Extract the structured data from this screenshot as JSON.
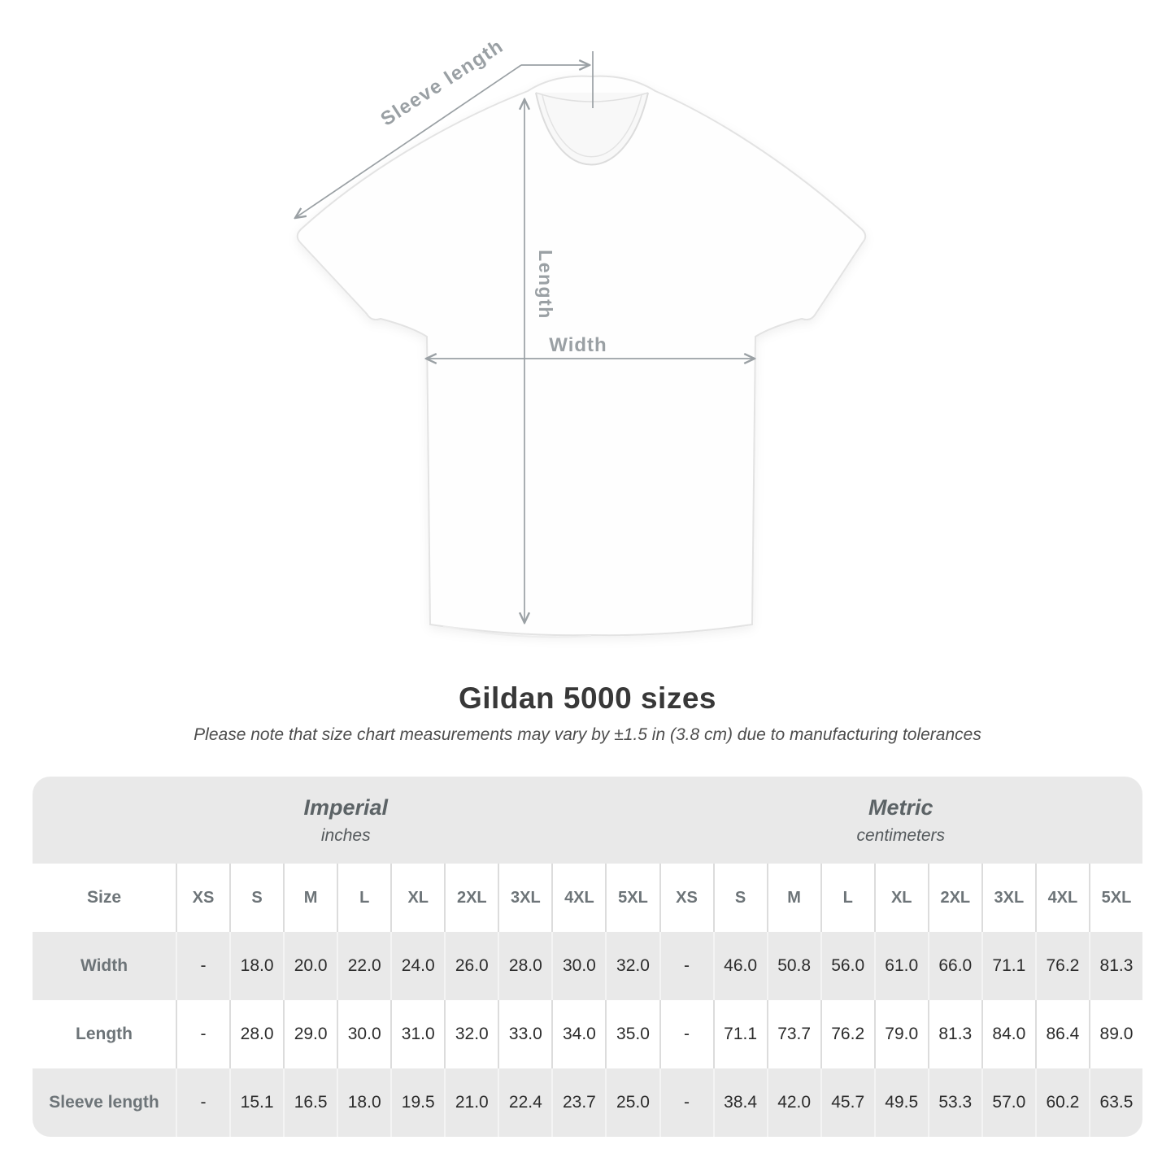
{
  "diagram": {
    "sleeve_label": "Sleeve length",
    "length_label": "Length",
    "width_label": "Width"
  },
  "chart_data": {
    "type": "table",
    "title": "Gildan 5000 sizes",
    "note": "Please note that size chart measurements may vary by ±1.5 in (3.8 cm) due to manufacturing tolerances",
    "unit_groups": [
      {
        "name": "Imperial",
        "unit": "inches"
      },
      {
        "name": "Metric",
        "unit": "centimeters"
      }
    ],
    "size_column_label": "Size",
    "sizes": [
      "XS",
      "S",
      "M",
      "L",
      "XL",
      "2XL",
      "3XL",
      "4XL",
      "5XL"
    ],
    "rows": [
      {
        "label": "Width",
        "imperial": [
          "-",
          "18.0",
          "20.0",
          "22.0",
          "24.0",
          "26.0",
          "28.0",
          "30.0",
          "32.0"
        ],
        "metric": [
          "-",
          "46.0",
          "50.8",
          "56.0",
          "61.0",
          "66.0",
          "71.1",
          "76.2",
          "81.3"
        ]
      },
      {
        "label": "Length",
        "imperial": [
          "-",
          "28.0",
          "29.0",
          "30.0",
          "31.0",
          "32.0",
          "33.0",
          "34.0",
          "35.0"
        ],
        "metric": [
          "-",
          "71.1",
          "73.7",
          "76.2",
          "79.0",
          "81.3",
          "84.0",
          "86.4",
          "89.0"
        ]
      },
      {
        "label": "Sleeve length",
        "imperial": [
          "-",
          "15.1",
          "16.5",
          "18.0",
          "19.5",
          "21.0",
          "22.4",
          "23.7",
          "25.0"
        ],
        "metric": [
          "-",
          "38.4",
          "42.0",
          "45.7",
          "49.5",
          "53.3",
          "57.0",
          "60.2",
          "63.5"
        ]
      }
    ]
  },
  "colors": {
    "row_gray": "#e9e9e9",
    "separator_on_white": "#dcdcdc",
    "separator_on_gray": "#f4f4f4",
    "heading_text": "#383838",
    "muted_text": "#6d7478",
    "value_text": "#2c2c2c",
    "annotation": "#9aa0a4"
  }
}
